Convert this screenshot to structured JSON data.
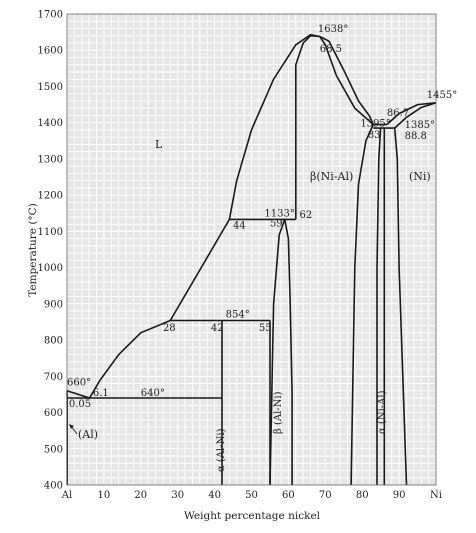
{
  "chart_data": {
    "type": "phase-diagram",
    "xlabel": "Weight percentage nickel",
    "ylabel": "Temperature (°C)",
    "xlim": [
      0,
      100
    ],
    "ylim": [
      400,
      1700
    ],
    "x_ticks": [
      "Al",
      "10",
      "20",
      "30",
      "40",
      "50",
      "60",
      "70",
      "80",
      "90",
      "Ni"
    ],
    "y_ticks": [
      "400",
      "500",
      "600",
      "700",
      "800",
      "900",
      "1000",
      "1100",
      "1200",
      "1300",
      "1400",
      "1500",
      "1600",
      "1700"
    ],
    "grid": true,
    "colors": {
      "background": "#e6e6e6",
      "line": "#1a1a1a",
      "grid": "#ffffff"
    },
    "phase_labels": {
      "liquid": "L",
      "beta": "β(Ni-Al)",
      "ni": "(Ni)",
      "al": "(Al)",
      "alpha_alni": "α (Al-Ni)",
      "beta_alni": "β (Al-Ni)",
      "alpha_nial": "α (Ni-Al)"
    },
    "annotations": [
      {
        "text": "1638°",
        "x": 68,
        "y": 1650
      },
      {
        "text": "68.5",
        "x": 68.5,
        "y": 1595
      },
      {
        "text": "1455°",
        "x": 97.5,
        "y": 1468
      },
      {
        "text": "86.7",
        "x": 86.7,
        "y": 1418
      },
      {
        "text": "1395°",
        "x": 79.5,
        "y": 1390
      },
      {
        "text": "83",
        "x": 81.5,
        "y": 1358
      },
      {
        "text": "1385°",
        "x": 91.5,
        "y": 1385
      },
      {
        "text": "88.8",
        "x": 91.5,
        "y": 1355
      },
      {
        "text": "1133°",
        "x": 53.5,
        "y": 1141
      },
      {
        "text": "62",
        "x": 63,
        "y": 1137
      },
      {
        "text": "59",
        "x": 55,
        "y": 1113
      },
      {
        "text": "44",
        "x": 45,
        "y": 1108
      },
      {
        "text": "854°",
        "x": 43,
        "y": 862
      },
      {
        "text": "42",
        "x": 39,
        "y": 825
      },
      {
        "text": "55",
        "x": 52,
        "y": 825
      },
      {
        "text": "28",
        "x": 26,
        "y": 825
      },
      {
        "text": "660°",
        "x": 0,
        "y": 675
      },
      {
        "text": "6.1",
        "x": 7,
        "y": 646
      },
      {
        "text": "640°",
        "x": 20,
        "y": 646
      },
      {
        "text": "0.05",
        "x": 0.5,
        "y": 615
      }
    ]
  }
}
